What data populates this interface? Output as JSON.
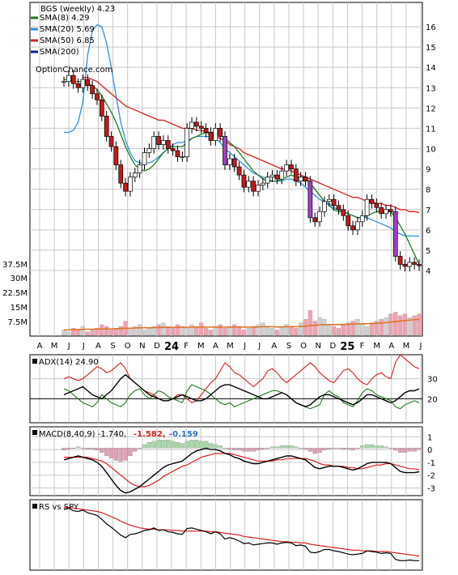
{
  "chart_data": {
    "type": "line",
    "title": "BGS (weekly) 4.23",
    "watermark": "OptionChance.com",
    "months": [
      "A",
      "M",
      "J",
      "J",
      "A",
      "S",
      "O",
      "N",
      "D",
      "24",
      "F",
      "M",
      "A",
      "M",
      "J",
      "J",
      "A",
      "S",
      "O",
      "N",
      "D",
      "25",
      "F",
      "M",
      "A",
      "M",
      "J"
    ],
    "price_panel": {
      "y_ticks": [
        "16",
        "15",
        "14",
        "13",
        "12",
        "11",
        "10",
        "9",
        "8",
        "7",
        "6",
        "5",
        "4"
      ],
      "legend": [
        {
          "label": "SMA(8) 4.29",
          "color": "#1f7a1f"
        },
        {
          "label": "SMA(20) 5.69",
          "color": "#2f8fd8"
        },
        {
          "label": "SMA(50) 6.85",
          "color": "#d62020"
        },
        {
          "label": "SMA(200)",
          "color": "#1a1aa8"
        }
      ],
      "series": [
        {
          "name": "close",
          "values": [
            13.3,
            13.6,
            13.2,
            13.0,
            13.4,
            13.1,
            12.7,
            12.4,
            11.6,
            10.6,
            10.1,
            9.2,
            8.3,
            7.9,
            8.6,
            8.8,
            9.2,
            9.8,
            10.0,
            10.6,
            10.2,
            10.4,
            10.0,
            9.9,
            9.6,
            9.6,
            11.0,
            11.3,
            11.1,
            11.0,
            10.8,
            10.4,
            11.0,
            10.6,
            9.2,
            9.5,
            9.1,
            8.7,
            8.1,
            8.4,
            7.9,
            8.2,
            8.3,
            8.6,
            8.7,
            8.5,
            8.9,
            9.2,
            9.0,
            8.4,
            8.6,
            8.4,
            6.6,
            6.4,
            6.9,
            7.4,
            7.5,
            7.2,
            7.0,
            6.7,
            6.2,
            6.0,
            6.4,
            6.7,
            7.5,
            7.3,
            7.1,
            6.8,
            7.0,
            6.9,
            4.7,
            4.3,
            4.2,
            4.4,
            4.3,
            4.23
          ]
        },
        {
          "name": "SMA(8)",
          "values": [
            13.4,
            13.4,
            13.3,
            13.3,
            13.3,
            13.2,
            13.1,
            12.9,
            12.6,
            12.2,
            11.8,
            11.3,
            10.7,
            10.1,
            9.6,
            9.2,
            9.0,
            8.9,
            9.0,
            9.2,
            9.5,
            9.8,
            10.0,
            10.1,
            10.1,
            10.1,
            10.3,
            10.5,
            10.6,
            10.7,
            10.8,
            10.8,
            10.8,
            10.7,
            10.5,
            10.3,
            10.1,
            9.8,
            9.5,
            9.2,
            8.9,
            8.7,
            8.5,
            8.4,
            8.4,
            8.4,
            8.5,
            8.6,
            8.7,
            8.6,
            8.6,
            8.6,
            8.3,
            8.0,
            7.7,
            7.4,
            7.2,
            7.0,
            6.9,
            6.9,
            6.8,
            6.7,
            6.6,
            6.6,
            6.7,
            6.8,
            6.9,
            6.9,
            6.9,
            6.9,
            6.6,
            6.2,
            5.8,
            5.3,
            4.8,
            4.29
          ]
        },
        {
          "name": "SMA(20)",
          "values": [
            10.8,
            10.8,
            10.9,
            11.3,
            12.3,
            14.6,
            15.8,
            16.1,
            16.0,
            15.2,
            14.0,
            12.6,
            11.3,
            10.4,
            9.8,
            9.4,
            9.3,
            9.3,
            9.3,
            9.4,
            9.6,
            9.8,
            10.0,
            10.2,
            10.3,
            10.3,
            10.4,
            10.5,
            10.6,
            10.6,
            10.6,
            10.6,
            10.5,
            10.3,
            10.0,
            9.8,
            9.6,
            9.4,
            9.2,
            9.0,
            8.8,
            8.7,
            8.6,
            8.5,
            8.4,
            8.4,
            8.4,
            8.5,
            8.5,
            8.4,
            8.3,
            8.1,
            7.9,
            7.7,
            7.5,
            7.4,
            7.3,
            7.1,
            7.0,
            6.9,
            6.8,
            6.7,
            6.6,
            6.6,
            6.6,
            6.5,
            6.4,
            6.3,
            6.2,
            6.1,
            5.9,
            5.8,
            5.7,
            5.7,
            5.7,
            5.69
          ]
        },
        {
          "name": "SMA(50)",
          "values": [
            null,
            null,
            null,
            null,
            13.5,
            13.5,
            13.4,
            13.3,
            13.1,
            12.9,
            12.7,
            12.5,
            12.3,
            12.1,
            12.0,
            11.9,
            11.8,
            11.7,
            11.6,
            11.5,
            11.4,
            11.4,
            11.3,
            11.2,
            11.1,
            11.0,
            11.0,
            11.0,
            10.9,
            10.9,
            10.8,
            10.7,
            10.6,
            10.5,
            10.4,
            10.2,
            10.1,
            10.0,
            9.8,
            9.7,
            9.6,
            9.5,
            9.4,
            9.3,
            9.2,
            9.1,
            9.0,
            9.0,
            8.9,
            8.8,
            8.7,
            8.6,
            8.5,
            8.4,
            8.3,
            8.2,
            8.1,
            8.0,
            7.9,
            7.8,
            7.7,
            7.6,
            7.6,
            7.5,
            7.4,
            7.4,
            7.3,
            7.3,
            7.2,
            7.2,
            7.1,
            7.0,
            7.0,
            6.9,
            6.9,
            6.85
          ]
        }
      ]
    },
    "volume_panel": {
      "y_ticks": [
        "37.5M",
        "30M",
        "22.5M",
        "15M",
        "7.5M"
      ],
      "values": [
        3,
        2,
        4,
        3,
        5,
        2,
        3,
        4,
        6,
        5,
        3,
        4,
        5,
        8,
        4,
        5,
        6,
        3,
        4,
        5,
        6,
        7,
        5,
        4,
        6,
        5,
        4,
        6,
        5,
        7,
        4,
        3,
        5,
        6,
        4,
        5,
        6,
        5,
        3,
        4,
        5,
        6,
        7,
        5,
        4,
        3,
        5,
        6,
        5,
        4,
        7,
        9,
        14,
        8,
        10,
        9,
        6,
        5,
        4,
        6,
        7,
        8,
        9,
        6,
        5,
        7,
        8,
        9,
        10,
        12,
        13,
        11,
        12,
        10,
        11,
        12
      ],
      "sma_values": [
        3.0,
        3.1,
        3.2,
        3.3,
        3.3,
        3.4,
        3.4,
        3.5,
        3.6,
        3.6,
        3.6,
        3.7,
        3.8,
        4.0,
        4.0,
        4.1,
        4.2,
        4.2,
        4.2,
        4.3,
        4.3,
        4.4,
        4.4,
        4.4,
        4.5,
        4.5,
        4.5,
        4.6,
        4.6,
        4.7,
        4.6,
        4.6,
        4.6,
        4.6,
        4.6,
        4.6,
        4.7,
        4.7,
        4.6,
        4.6,
        4.6,
        4.7,
        4.8,
        4.8,
        4.8,
        4.7,
        4.7,
        4.8,
        4.8,
        4.8,
        4.9,
        5.1,
        5.5,
        5.6,
        5.8,
        5.9,
        6.0,
        6.0,
        6.0,
        6.1,
        6.2,
        6.3,
        6.4,
        6.5,
        6.5,
        6.6,
        6.7,
        6.9,
        7.1,
        7.4,
        7.7,
        8.0,
        8.3,
        8.5,
        8.7,
        8.9
      ]
    },
    "adx_panel": {
      "label": "ADX(14) 24.90",
      "y_ticks": [
        "30",
        "20"
      ],
      "series": [
        {
          "name": "ADX",
          "values": [
            22,
            23,
            24,
            25,
            26,
            24,
            22,
            21,
            20,
            22,
            24,
            27,
            30,
            32,
            30,
            28,
            26,
            24,
            22,
            21,
            20,
            19,
            19,
            20,
            21,
            22,
            21,
            20,
            19,
            19,
            20,
            22,
            24,
            26,
            27,
            27,
            26,
            25,
            24,
            23,
            22,
            21,
            20,
            20,
            21,
            22,
            23,
            22,
            20,
            18,
            17,
            16,
            17,
            19,
            21,
            22,
            22,
            21,
            20,
            19,
            18,
            17,
            18,
            20,
            22,
            22,
            21,
            20,
            19,
            18,
            19,
            21,
            23,
            24,
            24,
            24.9
          ]
        },
        {
          "name": "+DI",
          "values": [
            25,
            24,
            22,
            20,
            18,
            17,
            16,
            18,
            22,
            20,
            18,
            17,
            16,
            18,
            22,
            24,
            25,
            22,
            20,
            22,
            24,
            23,
            21,
            20,
            19,
            18,
            24,
            27,
            26,
            25,
            24,
            22,
            20,
            18,
            17,
            18,
            16,
            17,
            18,
            19,
            20,
            21,
            22,
            23,
            24,
            24,
            23,
            22,
            20,
            18,
            17,
            16,
            15,
            16,
            17,
            22,
            24,
            22,
            21,
            18,
            17,
            16,
            19,
            23,
            25,
            24,
            22,
            21,
            20,
            19,
            16,
            15,
            17,
            18,
            19,
            18
          ]
        },
        {
          "name": "-DI",
          "values": [
            30,
            31,
            30,
            29,
            30,
            32,
            34,
            36,
            35,
            33,
            34,
            36,
            38,
            35,
            30,
            28,
            26,
            24,
            23,
            22,
            20,
            19,
            19,
            20,
            22,
            22,
            20,
            18,
            19,
            22,
            25,
            28,
            30,
            34,
            38,
            36,
            33,
            32,
            30,
            28,
            26,
            28,
            30,
            34,
            35,
            33,
            30,
            28,
            30,
            32,
            34,
            36,
            38,
            36,
            33,
            31,
            29,
            28,
            31,
            34,
            35,
            33,
            30,
            28,
            27,
            30,
            32,
            33,
            31,
            30,
            38,
            42,
            40,
            38,
            36,
            35
          ]
        }
      ]
    },
    "macd_panel": {
      "label": "MACD(8,40,9) -1.740,",
      "signal_label": "-1.582,",
      "hist_label": "-0.159",
      "y_ticks_top": [
        "1",
        "0"
      ],
      "y_ticks_bottom": [
        "-1",
        "-2",
        "-3"
      ],
      "series": [
        {
          "name": "MACD",
          "values": [
            -0.8,
            -0.7,
            -0.6,
            -0.5,
            -0.6,
            -0.7,
            -0.8,
            -1.0,
            -1.3,
            -1.8,
            -2.3,
            -2.8,
            -3.2,
            -3.4,
            -3.3,
            -3.1,
            -2.9,
            -2.6,
            -2.3,
            -2.0,
            -1.7,
            -1.4,
            -1.2,
            -1.1,
            -1.0,
            -0.9,
            -0.6,
            -0.3,
            -0.1,
            0.0,
            0.1,
            0.0,
            0.0,
            -0.1,
            -0.3,
            -0.4,
            -0.6,
            -0.7,
            -0.9,
            -1.0,
            -1.1,
            -1.1,
            -1.0,
            -0.9,
            -0.8,
            -0.7,
            -0.6,
            -0.5,
            -0.5,
            -0.6,
            -0.7,
            -0.8,
            -1.1,
            -1.4,
            -1.5,
            -1.4,
            -1.3,
            -1.3,
            -1.3,
            -1.4,
            -1.5,
            -1.6,
            -1.5,
            -1.3,
            -1.1,
            -1.0,
            -1.0,
            -1.0,
            -1.0,
            -1.1,
            -1.4,
            -1.7,
            -1.8,
            -1.8,
            -1.8,
            -1.74
          ]
        },
        {
          "name": "Signal",
          "values": [
            -0.6,
            -0.6,
            -0.6,
            -0.6,
            -0.6,
            -0.6,
            -0.7,
            -0.8,
            -0.9,
            -1.1,
            -1.4,
            -1.7,
            -2.0,
            -2.3,
            -2.6,
            -2.8,
            -2.9,
            -2.9,
            -2.8,
            -2.6,
            -2.4,
            -2.1,
            -1.9,
            -1.7,
            -1.5,
            -1.3,
            -1.2,
            -1.0,
            -0.8,
            -0.6,
            -0.5,
            -0.4,
            -0.3,
            -0.3,
            -0.3,
            -0.3,
            -0.4,
            -0.5,
            -0.6,
            -0.7,
            -0.8,
            -0.9,
            -0.9,
            -0.9,
            -0.9,
            -0.8,
            -0.8,
            -0.7,
            -0.7,
            -0.7,
            -0.7,
            -0.7,
            -0.8,
            -0.9,
            -1.1,
            -1.2,
            -1.2,
            -1.3,
            -1.3,
            -1.3,
            -1.4,
            -1.4,
            -1.5,
            -1.5,
            -1.4,
            -1.3,
            -1.2,
            -1.2,
            -1.1,
            -1.1,
            -1.2,
            -1.3,
            -1.4,
            -1.5,
            -1.5,
            -1.58
          ]
        }
      ]
    },
    "rs_panel": {
      "label": "RS vs SPY",
      "series": [
        {
          "name": "RS",
          "values": [
            0.95,
            0.97,
            0.93,
            0.92,
            0.94,
            0.9,
            0.88,
            0.86,
            0.8,
            0.73,
            0.68,
            0.62,
            0.56,
            0.52,
            0.57,
            0.58,
            0.6,
            0.63,
            0.64,
            0.67,
            0.63,
            0.64,
            0.61,
            0.6,
            0.58,
            0.57,
            0.66,
            0.67,
            0.65,
            0.63,
            0.61,
            0.58,
            0.61,
            0.58,
            0.5,
            0.52,
            0.5,
            0.47,
            0.43,
            0.44,
            0.41,
            0.42,
            0.43,
            0.44,
            0.44,
            0.42,
            0.44,
            0.45,
            0.44,
            0.4,
            0.41,
            0.39,
            0.3,
            0.29,
            0.31,
            0.34,
            0.34,
            0.32,
            0.31,
            0.29,
            0.27,
            0.26,
            0.27,
            0.28,
            0.32,
            0.31,
            0.3,
            0.28,
            0.29,
            0.28,
            0.19,
            0.17,
            0.17,
            0.18,
            0.17,
            0.17
          ]
        },
        {
          "name": "RS SMA",
          "values": [
            0.98,
            0.98,
            0.97,
            0.96,
            0.95,
            0.94,
            0.93,
            0.92,
            0.9,
            0.87,
            0.84,
            0.81,
            0.77,
            0.74,
            0.71,
            0.69,
            0.67,
            0.66,
            0.65,
            0.65,
            0.64,
            0.64,
            0.64,
            0.63,
            0.63,
            0.62,
            0.62,
            0.62,
            0.62,
            0.62,
            0.62,
            0.61,
            0.61,
            0.6,
            0.59,
            0.58,
            0.57,
            0.56,
            0.54,
            0.53,
            0.52,
            0.51,
            0.5,
            0.49,
            0.48,
            0.47,
            0.46,
            0.46,
            0.45,
            0.45,
            0.44,
            0.44,
            0.42,
            0.41,
            0.4,
            0.39,
            0.38,
            0.37,
            0.36,
            0.35,
            0.34,
            0.33,
            0.33,
            0.32,
            0.32,
            0.32,
            0.31,
            0.31,
            0.31,
            0.3,
            0.29,
            0.28,
            0.27,
            0.26,
            0.25,
            0.24
          ]
        }
      ]
    }
  }
}
